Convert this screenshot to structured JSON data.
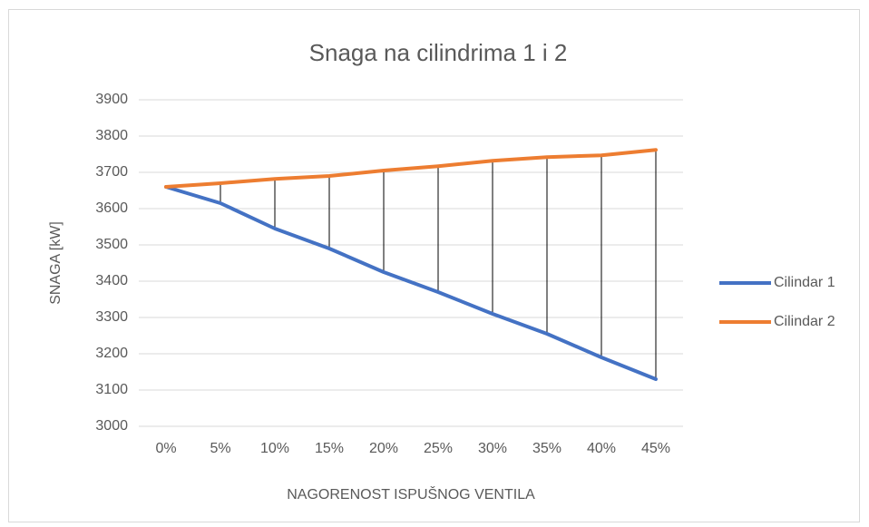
{
  "chart_data": {
    "type": "line",
    "title": "Snaga na cilindrima 1 i 2",
    "xlabel": "NAGORENOST ISPUŠNOG VENTILA",
    "ylabel": "SNAGA [kW]",
    "categories": [
      "0%",
      "5%",
      "10%",
      "15%",
      "20%",
      "25%",
      "30%",
      "35%",
      "40%",
      "45%"
    ],
    "series": [
      {
        "name": "Cilindar 1",
        "color": "#4472c4",
        "values": [
          3660,
          3615,
          3545,
          3490,
          3425,
          3370,
          3310,
          3255,
          3190,
          3130
        ]
      },
      {
        "name": "Cilindar 2",
        "color": "#ed7d31",
        "values": [
          3660,
          3670,
          3682,
          3690,
          3705,
          3717,
          3732,
          3742,
          3747,
          3762
        ]
      }
    ],
    "ylim": [
      3000,
      3900
    ],
    "yticks": [
      3000,
      3100,
      3200,
      3300,
      3400,
      3500,
      3600,
      3700,
      3800,
      3900
    ],
    "grid": true,
    "high_low_lines": true,
    "legend": "right"
  }
}
